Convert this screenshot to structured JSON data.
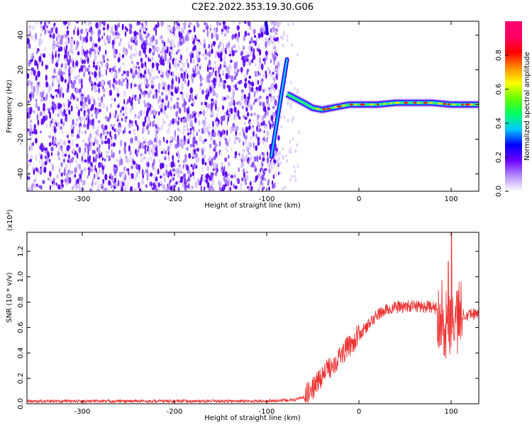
{
  "title": "C2E2.2022.353.19.30.G06",
  "chart_data": [
    {
      "type": "heatmap",
      "xlabel": "Height of straight line (km)",
      "ylabel": "Frequency (Hz)",
      "xlim": [
        -360,
        130
      ],
      "ylim": [
        -50,
        48
      ],
      "x_ticks": [
        -300,
        -200,
        -100,
        0,
        100
      ],
      "y_ticks": [
        -40,
        -20,
        0,
        20,
        40
      ],
      "colorbar": {
        "label": "Normalized spectral amplitude",
        "range": [
          0,
          1
        ],
        "ticks": [
          0.0,
          0.2,
          0.4,
          0.6,
          0.8
        ],
        "colors": [
          "#ffffff",
          "#b58cff",
          "#6a00ff",
          "#0000ff",
          "#00c8ff",
          "#00ff64",
          "#64ff00",
          "#ffff00",
          "#ff8c00",
          "#ff0000",
          "#ff0064",
          "#ff006e"
        ]
      },
      "features": {
        "noise_region_x": [
          -360,
          -95
        ],
        "chirp": {
          "x": [
            -95,
            -78
          ],
          "y": [
            -30,
            26
          ],
          "y_ticks": ""
        },
        "carrier": {
          "x": [
            -78,
            -60,
            -50,
            -40,
            -30,
            -20,
            -10,
            0,
            20,
            40,
            60,
            80,
            100,
            120,
            130
          ],
          "y": [
            6,
            1,
            -2,
            -3,
            -2,
            -1,
            0,
            0,
            0,
            1,
            1,
            1,
            0,
            0,
            0
          ],
          "y_ticks": ""
        }
      }
    },
    {
      "type": "line",
      "xlabel": "Height of straight line (km)",
      "ylabel": "SNR (10 * v/v)",
      "y_multiplier": "(x10⁴)",
      "color": "#ee3333",
      "xlim": [
        -360,
        130
      ],
      "ylim": [
        0,
        1.35
      ],
      "x_ticks": [
        -300,
        -200,
        -100,
        0,
        100
      ],
      "y_ticks": [
        0.0,
        0.2,
        0.4,
        0.6,
        0.8,
        1.0,
        1.2
      ],
      "y_tick_labels": [
        "0.0",
        "0.2",
        "0.4",
        "0.6",
        "0.8",
        "1.0",
        "1.2"
      ],
      "x": [
        -360,
        -300,
        -200,
        -100,
        -70,
        -60,
        -50,
        -40,
        -30,
        -20,
        -10,
        0,
        10,
        20,
        30,
        40,
        60,
        80,
        90,
        95,
        100,
        105,
        110,
        120,
        130
      ],
      "y": [
        0.02,
        0.02,
        0.02,
        0.02,
        0.03,
        0.05,
        0.12,
        0.22,
        0.3,
        0.38,
        0.46,
        0.54,
        0.62,
        0.7,
        0.74,
        0.76,
        0.77,
        0.76,
        0.72,
        0.6,
        0.72,
        0.66,
        0.7,
        0.71,
        0.71
      ]
    }
  ]
}
